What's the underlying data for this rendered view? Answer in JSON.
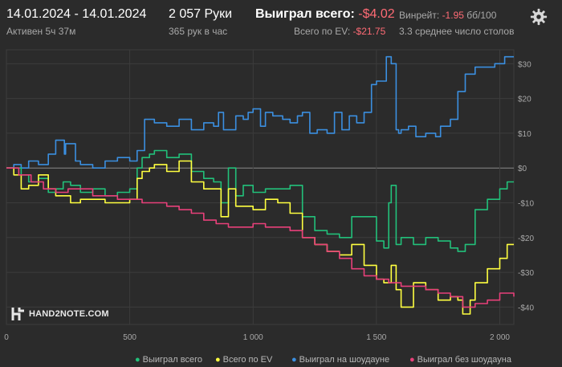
{
  "header": {
    "date_range": "14.01.2024 - 14.01.2024",
    "active": "Активен 5ч 37м",
    "hands": "2 057 Руки",
    "hands_per_hour": "365 рук в час",
    "won_total_label": "Выиграл всего:",
    "won_total_value": "-$4.02",
    "ev_total_label": "Всего по EV:",
    "ev_total_value": "-$21.75",
    "winrate_label": "Винрейт:",
    "winrate_value": "-1.95",
    "winrate_unit": "бб/100",
    "avg_tables": "3.3 среднее число столов"
  },
  "logo": {
    "text": "HAND2NOTE.COM"
  },
  "colors": {
    "green": "#22c07a",
    "yellow": "#ffff40",
    "blue": "#3b8fe0",
    "pink": "#e8407a",
    "grid": "#3c3c3c",
    "zero": "#8a8a8a",
    "text": "#a8a8a8"
  },
  "chart_data": {
    "type": "line",
    "x_ticks": [
      0,
      500,
      1000,
      1500,
      2000
    ],
    "x_tick_labels": [
      "0",
      "500",
      "1 000",
      "1 500",
      "2 000"
    ],
    "y_ticks": [
      30,
      20,
      10,
      0,
      -10,
      -20,
      -30,
      -40
    ],
    "y_tick_labels": [
      "$30",
      "$20",
      "$10",
      "$0",
      "-$10",
      "-$20",
      "-$30",
      "-$40"
    ],
    "xlim": [
      0,
      2057
    ],
    "ylim": [
      -45,
      34
    ],
    "grid": true,
    "legend_position": "bottom",
    "series": [
      {
        "name": "Выиграл на шоудауне",
        "color": "#3b8fe0",
        "x": [
          0,
          30,
          60,
          90,
          130,
          170,
          200,
          235,
          240,
          280,
          300,
          350,
          400,
          450,
          500,
          530,
          560,
          600,
          650,
          700,
          750,
          800,
          840,
          860,
          880,
          930,
          960,
          980,
          1000,
          1030,
          1050,
          1080,
          1120,
          1150,
          1180,
          1200,
          1230,
          1260,
          1300,
          1330,
          1360,
          1390,
          1420,
          1450,
          1480,
          1500,
          1530,
          1540,
          1560,
          1580,
          1590,
          1600,
          1630,
          1660,
          1700,
          1740,
          1760,
          1800,
          1830,
          1860,
          1900,
          1940,
          1980,
          2020,
          2057
        ],
        "values": [
          0,
          1,
          0,
          2,
          1,
          4,
          8,
          4,
          7,
          2,
          1,
          0,
          2,
          3,
          2,
          5,
          14,
          13,
          12,
          14,
          11,
          13,
          12,
          16,
          11,
          15,
          14,
          16,
          17,
          12,
          16,
          15,
          14,
          13,
          15,
          16,
          10,
          11,
          10,
          16,
          11,
          15,
          13,
          16,
          24,
          25,
          25,
          32,
          30,
          11,
          10,
          11,
          12,
          9,
          10,
          9,
          12,
          14,
          22,
          27,
          29,
          29,
          30,
          32,
          32
        ]
      },
      {
        "name": "Выиграл всего",
        "color": "#22c07a",
        "x": [
          0,
          30,
          60,
          90,
          130,
          170,
          200,
          230,
          260,
          300,
          350,
          400,
          450,
          500,
          530,
          550,
          580,
          600,
          650,
          700,
          750,
          800,
          840,
          870,
          900,
          930,
          960,
          1000,
          1050,
          1100,
          1150,
          1200,
          1250,
          1300,
          1350,
          1400,
          1450,
          1500,
          1530,
          1550,
          1560,
          1580,
          1600,
          1650,
          1700,
          1750,
          1800,
          1830,
          1860,
          1900,
          1950,
          2000,
          2030,
          2057
        ],
        "values": [
          0,
          0,
          -2,
          -4,
          -3,
          -7,
          -6,
          -4,
          -5,
          -7,
          -6,
          -8,
          -7,
          -6,
          0,
          3,
          4,
          5,
          3,
          4,
          -1,
          -3,
          -4,
          -10,
          0,
          -8,
          -5,
          -7,
          -6,
          -6,
          -5,
          -14,
          -18,
          -19,
          -20,
          -14,
          -14,
          -21,
          -23,
          -10,
          -5,
          -22,
          -20,
          -22,
          -20,
          -21,
          -23,
          -24,
          -22,
          -12,
          -9,
          -6,
          -4,
          -4
        ]
      },
      {
        "name": "Всего по EV",
        "color": "#ffff40",
        "x": [
          0,
          30,
          60,
          90,
          130,
          170,
          200,
          230,
          260,
          300,
          350,
          400,
          450,
          500,
          530,
          550,
          580,
          600,
          650,
          700,
          750,
          800,
          840,
          870,
          900,
          930,
          960,
          1000,
          1050,
          1100,
          1150,
          1200,
          1250,
          1300,
          1350,
          1400,
          1450,
          1500,
          1530,
          1560,
          1580,
          1600,
          1650,
          1700,
          1750,
          1800,
          1830,
          1850,
          1880,
          1900,
          1950,
          2000,
          2030,
          2057
        ],
        "values": [
          0,
          -2,
          -6,
          -5,
          -2,
          -6,
          -8,
          -8,
          -10,
          -9,
          -9,
          -10,
          -10,
          -9,
          -3,
          -1,
          0,
          1,
          -1,
          2,
          -4,
          -6,
          -6,
          -14,
          -6,
          -11,
          -11,
          -12,
          -9,
          -10,
          -13,
          -20,
          -22,
          -24,
          -25,
          -22,
          -28,
          -32,
          -33,
          -28,
          -35,
          -40,
          -33,
          -35,
          -38,
          -37,
          -38,
          -42,
          -38,
          -33,
          -29,
          -26,
          -22,
          -22
        ]
      },
      {
        "name": "Выиграл без шоудауна",
        "color": "#e8407a",
        "x": [
          0,
          50,
          100,
          150,
          200,
          250,
          300,
          350,
          400,
          450,
          500,
          550,
          600,
          650,
          700,
          750,
          800,
          850,
          900,
          950,
          1000,
          1050,
          1100,
          1150,
          1200,
          1250,
          1300,
          1350,
          1400,
          1450,
          1500,
          1550,
          1600,
          1650,
          1700,
          1750,
          1800,
          1850,
          1900,
          1950,
          2000,
          2057
        ],
        "values": [
          0,
          -2,
          -4,
          -6,
          -7,
          -6,
          -6,
          -8,
          -8,
          -9,
          -9,
          -10,
          -10,
          -11,
          -12,
          -13,
          -15,
          -16,
          -17,
          -17,
          -16,
          -17,
          -17,
          -18,
          -20,
          -22,
          -24,
          -26,
          -29,
          -31,
          -32,
          -33,
          -34,
          -34,
          -35,
          -36,
          -37,
          -40,
          -39,
          -38,
          -36,
          -37
        ]
      }
    ]
  },
  "legend": {
    "items": [
      {
        "label": "Выиграл всего",
        "color": "#22c07a"
      },
      {
        "label": "Всего по EV",
        "color": "#ffff40"
      },
      {
        "label": "Выиграл на шоудауне",
        "color": "#3b8fe0"
      },
      {
        "label": "Выиграл без шоудауна",
        "color": "#e8407a"
      }
    ]
  }
}
